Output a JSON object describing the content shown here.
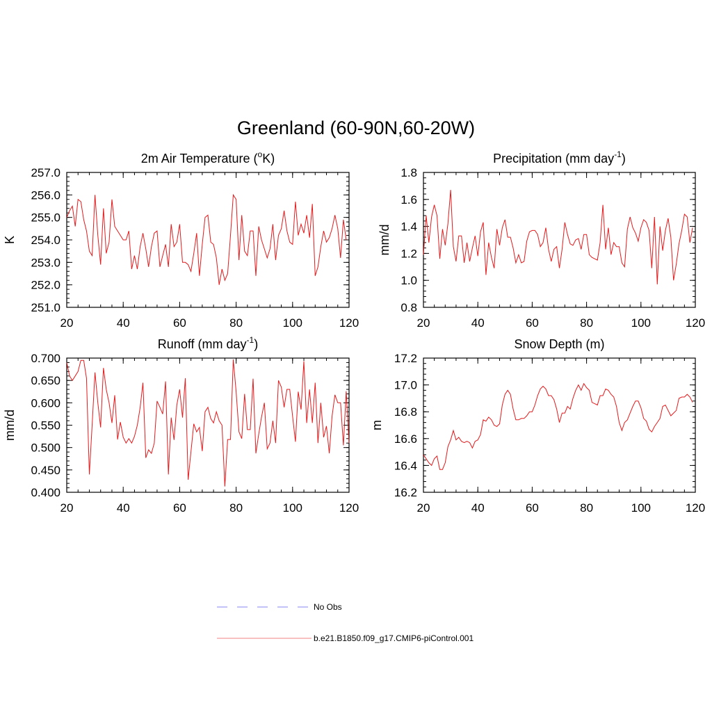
{
  "figure": {
    "title": "Greenland (60-90N,60-20W)"
  },
  "legend": {
    "entries": [
      {
        "label": "No Obs",
        "color": "#9d9df5",
        "dash": true
      },
      {
        "label": "b.e21.B1850.f09_g17.CMIP6-piControl.001",
        "color": "#f39a9a",
        "dash": false
      }
    ]
  },
  "colors": {
    "series": "#e31a1c"
  },
  "chart_data": [
    {
      "type": "line",
      "title_main": "2m Air Temperature (",
      "title_sup": "o",
      "title_end": "K)",
      "ylabel": "K",
      "xlim": [
        20,
        120
      ],
      "ylim": [
        251.0,
        257.0
      ],
      "xticks": [
        20,
        40,
        60,
        80,
        100,
        120
      ],
      "yticks": [
        251.0,
        252.0,
        253.0,
        254.0,
        255.0,
        256.0,
        257.0
      ],
      "ytick_labels": [
        "251.0",
        "252.0",
        "253.0",
        "254.0",
        "255.0",
        "256.0",
        "257.0"
      ],
      "x_start": 20,
      "values": [
        255.0,
        255.3,
        255.5,
        254.6,
        255.8,
        255.7,
        254.9,
        254.4,
        253.5,
        253.3,
        256.0,
        254.2,
        252.9,
        255.4,
        253.4,
        253.9,
        255.8,
        254.6,
        254.4,
        254.2,
        254.0,
        254.0,
        254.4,
        252.7,
        253.3,
        252.7,
        253.7,
        254.3,
        253.6,
        252.8,
        253.7,
        254.3,
        254.4,
        252.8,
        253.3,
        253.8,
        252.8,
        254.7,
        253.7,
        253.9,
        254.7,
        253.0,
        253.0,
        252.9,
        252.6,
        253.4,
        254.3,
        252.4,
        253.8,
        255.0,
        255.1,
        253.9,
        253.8,
        253.2,
        252.0,
        252.7,
        252.2,
        252.5,
        254.2,
        256.0,
        255.8,
        253.1,
        255.1,
        253.5,
        253.3,
        254.4,
        254.4,
        252.4,
        254.6,
        254.0,
        253.6,
        253.2,
        253.6,
        254.7,
        253.1,
        254.2,
        254.5,
        255.3,
        254.4,
        253.9,
        253.8,
        255.7,
        254.2,
        254.7,
        254.3,
        255.1,
        254.1,
        255.6,
        252.4,
        252.8,
        253.7,
        254.4,
        253.9,
        254.1,
        254.5,
        255.1,
        254.5,
        253.2,
        254.9,
        254.0
      ]
    },
    {
      "type": "line",
      "title_main": "Precipitation (mm day",
      "title_sup": "-1",
      "title_end": ")",
      "ylabel": "mm/d",
      "xlim": [
        20,
        120
      ],
      "ylim": [
        0.8,
        1.8
      ],
      "xticks": [
        20,
        40,
        60,
        80,
        100,
        120
      ],
      "yticks": [
        0.8,
        1.0,
        1.2,
        1.4,
        1.6,
        1.8
      ],
      "ytick_labels": [
        "0.8",
        "1.0",
        "1.2",
        "1.4",
        "1.6",
        "1.8"
      ],
      "x_start": 20,
      "values": [
        1.19,
        1.48,
        1.28,
        1.47,
        1.56,
        1.48,
        1.16,
        1.38,
        1.26,
        1.42,
        1.67,
        1.25,
        1.14,
        1.33,
        1.33,
        1.13,
        1.28,
        1.14,
        1.24,
        1.33,
        1.18,
        1.36,
        1.43,
        1.04,
        1.28,
        1.17,
        1.09,
        1.38,
        1.26,
        1.39,
        1.45,
        1.32,
        1.32,
        1.24,
        1.13,
        1.19,
        1.13,
        1.14,
        1.29,
        1.36,
        1.37,
        1.37,
        1.34,
        1.25,
        1.28,
        1.39,
        1.23,
        1.14,
        1.23,
        1.25,
        1.09,
        1.23,
        1.43,
        1.34,
        1.27,
        1.26,
        1.3,
        1.31,
        1.23,
        1.34,
        1.34,
        1.19,
        1.17,
        1.16,
        1.15,
        1.28,
        1.56,
        1.23,
        1.39,
        1.19,
        1.28,
        1.25,
        1.25,
        1.13,
        1.1,
        1.38,
        1.47,
        1.39,
        1.35,
        1.29,
        1.39,
        1.45,
        1.43,
        1.37,
        1.09,
        1.47,
        0.97,
        1.4,
        1.22,
        1.37,
        1.46,
        1.32,
        1.0,
        1.12,
        1.27,
        1.37,
        1.49,
        1.47,
        1.28,
        1.39
      ]
    },
    {
      "type": "line",
      "title_main": "Runoff (mm day",
      "title_sup": "-1",
      "title_end": ")",
      "ylabel": "mm/d",
      "xlim": [
        20,
        120
      ],
      "ylim": [
        0.4,
        0.7
      ],
      "xticks": [
        20,
        40,
        60,
        80,
        100,
        120
      ],
      "yticks": [
        0.4,
        0.45,
        0.5,
        0.55,
        0.6,
        0.65,
        0.7
      ],
      "ytick_labels": [
        "0.400",
        "0.450",
        "0.500",
        "0.550",
        "0.600",
        "0.650",
        "0.700"
      ],
      "x_start": 20,
      "values": [
        0.69,
        0.66,
        0.65,
        0.66,
        0.67,
        0.695,
        0.695,
        0.655,
        0.44,
        0.55,
        0.668,
        0.6,
        0.545,
        0.678,
        0.63,
        0.6,
        0.555,
        0.617,
        0.518,
        0.557,
        0.523,
        0.51,
        0.52,
        0.51,
        0.525,
        0.55,
        0.59,
        0.645,
        0.477,
        0.495,
        0.487,
        0.51,
        0.604,
        0.59,
        0.575,
        0.648,
        0.44,
        0.567,
        0.517,
        0.595,
        0.63,
        0.567,
        0.655,
        0.428,
        0.49,
        0.553,
        0.535,
        0.545,
        0.492,
        0.58,
        0.59,
        0.565,
        0.555,
        0.58,
        0.56,
        0.55,
        0.413,
        0.518,
        0.518,
        0.697,
        0.625,
        0.535,
        0.52,
        0.62,
        0.54,
        0.54,
        0.654,
        0.487,
        0.53,
        0.568,
        0.6,
        0.497,
        0.51,
        0.56,
        0.51,
        0.65,
        0.635,
        0.59,
        0.63,
        0.63,
        0.57,
        0.513,
        0.625,
        0.585,
        0.693,
        0.555,
        0.63,
        0.555,
        0.645,
        0.51,
        0.6,
        0.523,
        0.548,
        0.487,
        0.57,
        0.618,
        0.6,
        0.6,
        0.505,
        0.626,
        0.51
      ]
    },
    {
      "type": "line",
      "title_main": "Snow Depth (m)",
      "title_sup": "",
      "title_end": "",
      "ylabel": "m",
      "xlim": [
        20,
        120
      ],
      "ylim": [
        16.2,
        17.2
      ],
      "xticks": [
        20,
        40,
        60,
        80,
        100,
        120
      ],
      "yticks": [
        16.2,
        16.4,
        16.6,
        16.8,
        17.0,
        17.2
      ],
      "ytick_labels": [
        "16.2",
        "16.4",
        "16.6",
        "16.8",
        "17.0",
        "17.2"
      ],
      "x_start": 20,
      "values": [
        16.48,
        16.45,
        16.42,
        16.4,
        16.45,
        16.47,
        16.37,
        16.37,
        16.42,
        16.54,
        16.59,
        16.66,
        16.59,
        16.61,
        16.58,
        16.57,
        16.58,
        16.57,
        16.53,
        16.58,
        16.59,
        16.63,
        16.74,
        16.73,
        16.76,
        16.74,
        16.7,
        16.69,
        16.71,
        16.85,
        16.93,
        16.96,
        16.93,
        16.82,
        16.74,
        16.74,
        16.75,
        16.75,
        16.77,
        16.8,
        16.8,
        16.85,
        16.92,
        16.97,
        16.99,
        16.97,
        16.92,
        16.92,
        16.89,
        16.82,
        16.72,
        16.79,
        16.79,
        16.84,
        16.82,
        16.9,
        16.96,
        17.0,
        16.96,
        17.01,
        16.98,
        16.96,
        16.87,
        16.86,
        16.85,
        16.92,
        16.92,
        16.97,
        16.96,
        16.93,
        16.91,
        16.84,
        16.72,
        16.66,
        16.72,
        16.74,
        16.79,
        16.84,
        16.88,
        16.88,
        16.83,
        16.75,
        16.73,
        16.67,
        16.65,
        16.69,
        16.72,
        16.75,
        16.84,
        16.85,
        16.81,
        16.77,
        16.79,
        16.81,
        16.9,
        16.91,
        16.91,
        16.93,
        16.91,
        16.87
      ]
    }
  ]
}
